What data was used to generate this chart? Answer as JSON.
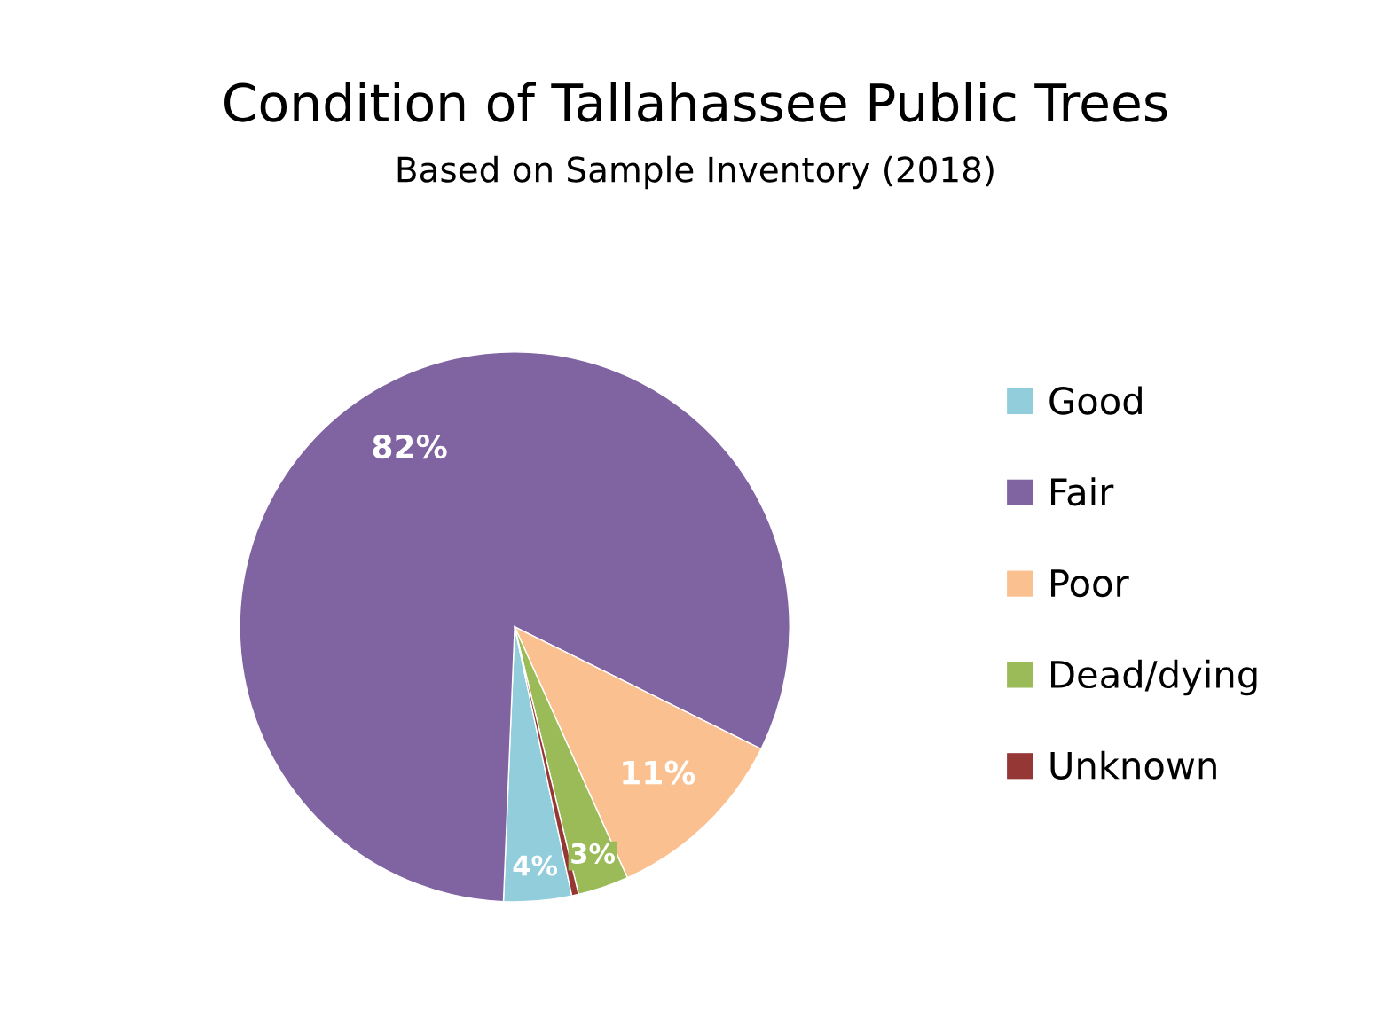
{
  "chart_data": {
    "type": "pie",
    "title": "Condition of Tallahassee Public Trees",
    "subtitle": "Based on Sample Inventory (2018)",
    "categories": [
      "Good",
      "Fair",
      "Poor",
      "Dead/dying",
      "Unknown"
    ],
    "values": [
      4,
      82,
      11,
      3,
      0.4
    ],
    "value_labels": [
      "4%",
      "82%",
      "11%",
      "3%",
      null
    ],
    "colors": [
      "#92cddc",
      "#8064a2",
      "#fac090",
      "#9bbb59",
      "#953735"
    ],
    "legend": "right"
  }
}
